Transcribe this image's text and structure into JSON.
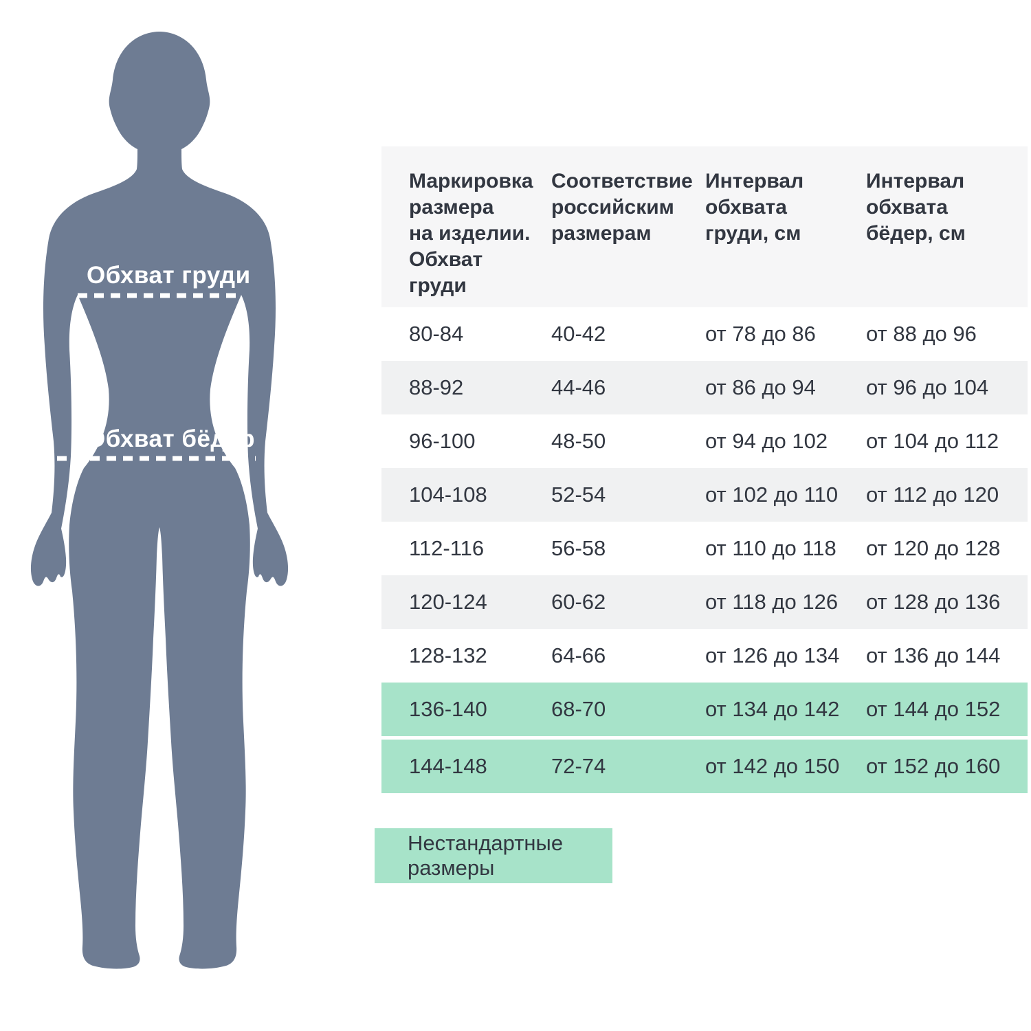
{
  "page": {
    "background": "#ffffff",
    "text_color": "#323741"
  },
  "figure": {
    "body_color": "#6e7c93",
    "annotation_color": "#ffffff",
    "chest_label": "Обхват груди",
    "hip_label": "Обхват бёдер"
  },
  "table": {
    "header_bg": "#f6f6f7",
    "row_alt_bg": "#f0f1f2",
    "highlight_bg": "#a7e3c9",
    "columns": [
      "Маркировка\nразмера\nна изделии.\nОбхват\nгруди",
      "Соответствие\nроссийским\nразмерам",
      "Интервал\nобхвата\nгруди, см",
      "Интервал\nобхвата\nбёдер, см"
    ],
    "rows": [
      {
        "marking": "80-84",
        "russian": "40-42",
        "chest": "от 78 до 86",
        "hips": "от 88 до 96",
        "highlight": false
      },
      {
        "marking": "88-92",
        "russian": "44-46",
        "chest": "от 86 до 94",
        "hips": "от 96 до 104",
        "highlight": false
      },
      {
        "marking": "96-100",
        "russian": "48-50",
        "chest": "от 94 до 102",
        "hips": "от 104 до 112",
        "highlight": false
      },
      {
        "marking": "104-108",
        "russian": "52-54",
        "chest": "от 102 до 110",
        "hips": "от 112 до 120",
        "highlight": false
      },
      {
        "marking": "112-116",
        "russian": "56-58",
        "chest": "от 110 до 118",
        "hips": "от 120 до 128",
        "highlight": false
      },
      {
        "marking": "120-124",
        "russian": "60-62",
        "chest": "от 118 до 126",
        "hips": "от 128 до 136",
        "highlight": false
      },
      {
        "marking": "128-132",
        "russian": "64-66",
        "chest": "от 126 до 134",
        "hips": "от 136 до 144",
        "highlight": false
      },
      {
        "marking": "136-140",
        "russian": "68-70",
        "chest": "от 134 до 142",
        "hips": "от 144 до 152",
        "highlight": true
      },
      {
        "marking": "144-148",
        "russian": "72-74",
        "chest": "от 142 до 150",
        "hips": "от 152 до 160",
        "highlight": true
      }
    ]
  },
  "legend": {
    "label": "Нестандартные размеры",
    "bg": "#a7e3c9"
  }
}
